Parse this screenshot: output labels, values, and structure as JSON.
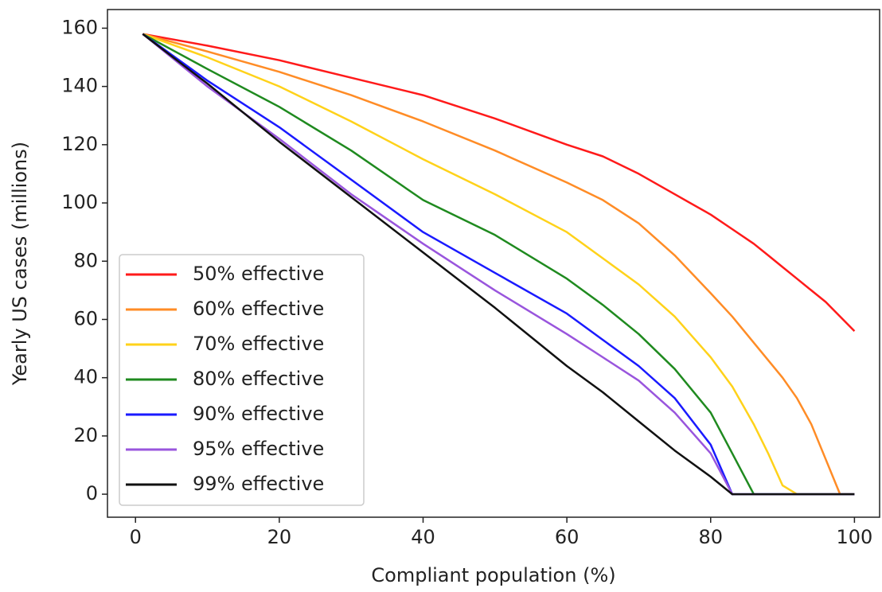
{
  "chart_data": {
    "type": "line",
    "x_label": "Compliant population (%)",
    "y_label": "Yearly US cases (millions)",
    "x": [
      1,
      10,
      20,
      30,
      40,
      50,
      60,
      65,
      70,
      75,
      80,
      83,
      86,
      88,
      90,
      92,
      94,
      96,
      98,
      100
    ],
    "series": [
      {
        "name": "50% effective",
        "color": "#ff1a1a",
        "values": [
          158,
          154,
          149,
          143,
          137,
          129,
          120,
          116,
          110,
          103,
          96,
          91,
          86,
          82,
          78,
          74,
          70,
          66,
          61,
          56
        ]
      },
      {
        "name": "60% effective",
        "color": "#ff8c26",
        "values": [
          158,
          152,
          145,
          137,
          128,
          118,
          107,
          101,
          93,
          82,
          69,
          61,
          52,
          46,
          40,
          33,
          24,
          12,
          0,
          0
        ]
      },
      {
        "name": "70% effective",
        "color": "#ffd21a",
        "values": [
          158,
          150,
          140,
          128,
          115,
          103,
          90,
          81,
          72,
          61,
          47,
          37,
          24,
          14,
          3,
          0,
          0,
          0,
          0,
          0
        ]
      },
      {
        "name": "80% effective",
        "color": "#1f8a1f",
        "values": [
          158,
          146,
          133,
          118,
          101,
          89,
          74,
          65,
          55,
          43,
          28,
          14,
          0,
          0,
          0,
          0,
          0,
          0,
          0,
          0
        ]
      },
      {
        "name": "90% effective",
        "color": "#1a1aff",
        "values": [
          158,
          142,
          126,
          108,
          90,
          76,
          62,
          53,
          44,
          33,
          17,
          0,
          0,
          0,
          0,
          0,
          0,
          0,
          0,
          0
        ]
      },
      {
        "name": "95% effective",
        "color": "#9955dd",
        "values": [
          158,
          140,
          122,
          103,
          86,
          70,
          55,
          47,
          39,
          28,
          14,
          0,
          0,
          0,
          0,
          0,
          0,
          0,
          0,
          0
        ]
      },
      {
        "name": "99% effective",
        "color": "#111111",
        "values": [
          158,
          141,
          121,
          102,
          83,
          64,
          44,
          35,
          25,
          15,
          6,
          0,
          0,
          0,
          0,
          0,
          0,
          0,
          0,
          0
        ]
      }
    ],
    "xlim": [
      -3.9,
      103.5
    ],
    "ylim": [
      -7.9,
      166.4
    ],
    "xticks": [
      0,
      20,
      40,
      60,
      80,
      100
    ],
    "yticks": [
      0,
      20,
      40,
      60,
      80,
      100,
      120,
      140,
      160
    ],
    "legend": "lower left"
  }
}
